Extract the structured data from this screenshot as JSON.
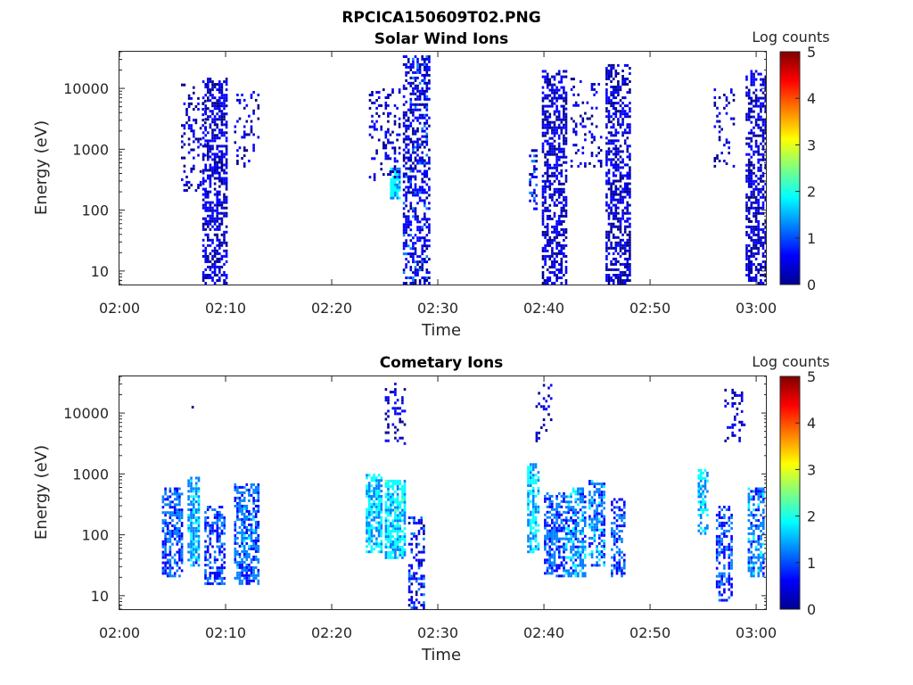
{
  "figure_title": "RPCICA150609T02.PNG",
  "colormap": [
    "#00008f",
    "#0000ff",
    "#0080ff",
    "#00ffff",
    "#80ff80",
    "#ffff00",
    "#ff8000",
    "#ff0000",
    "#800000"
  ],
  "chart_data": [
    {
      "type": "heatmap",
      "title": "Solar Wind Ions",
      "xlabel": "Time",
      "ylabel": "Energy (eV)",
      "y_scale": "log",
      "xlim": [
        "02:00",
        "03:01"
      ],
      "ylim": [
        6,
        40000
      ],
      "x_ticks": [
        "02:00",
        "02:10",
        "02:20",
        "02:30",
        "02:40",
        "02:50",
        "03:00"
      ],
      "y_ticks": [
        "10",
        "100",
        "1000",
        "10000"
      ],
      "colorbar": {
        "label": "Log counts",
        "range": [
          0,
          5
        ],
        "ticks": [
          "0",
          "1",
          "2",
          "3",
          "4",
          "5"
        ]
      },
      "clusters": [
        {
          "t": "02:09",
          "t_spread_min": 1.2,
          "e_min": 6,
          "e_max": 15000,
          "level": 0.4,
          "density": 0.55
        },
        {
          "t": "02:07",
          "t_spread_min": 1.2,
          "e_min": 200,
          "e_max": 12000,
          "level": 0.3,
          "density": 0.2
        },
        {
          "t": "02:12",
          "t_spread_min": 1.2,
          "e_min": 500,
          "e_max": 10000,
          "level": 0.3,
          "density": 0.15
        },
        {
          "t": "02:28",
          "t_spread_min": 1.3,
          "e_min": 6,
          "e_max": 35000,
          "level": 0.5,
          "density": 0.5
        },
        {
          "t": "02:26",
          "t_spread_min": 0.5,
          "e_min": 150,
          "e_max": 500,
          "level": 1.7,
          "density": 0.8
        },
        {
          "t": "02:25",
          "t_spread_min": 1.5,
          "e_min": 300,
          "e_max": 10000,
          "level": 0.3,
          "density": 0.2
        },
        {
          "t": "02:41",
          "t_spread_min": 1.2,
          "e_min": 6,
          "e_max": 20000,
          "level": 0.4,
          "density": 0.55
        },
        {
          "t": "02:39",
          "t_spread_min": 0.4,
          "e_min": 100,
          "e_max": 1000,
          "level": 0.6,
          "density": 0.3
        },
        {
          "t": "02:44",
          "t_spread_min": 1.5,
          "e_min": 500,
          "e_max": 15000,
          "level": 0.3,
          "density": 0.15
        },
        {
          "t": "02:47",
          "t_spread_min": 1.2,
          "e_min": 6,
          "e_max": 25000,
          "level": 0.4,
          "density": 0.55
        },
        {
          "t": "02:57",
          "t_spread_min": 1.0,
          "e_min": 500,
          "e_max": 10000,
          "level": 0.3,
          "density": 0.2
        },
        {
          "t": "03:00",
          "t_spread_min": 1.0,
          "e_min": 6,
          "e_max": 20000,
          "level": 0.4,
          "density": 0.55
        }
      ]
    },
    {
      "type": "heatmap",
      "title": "Cometary Ions",
      "xlabel": "Time",
      "ylabel": "Energy (eV)",
      "y_scale": "log",
      "xlim": [
        "02:00",
        "03:01"
      ],
      "ylim": [
        6,
        40000
      ],
      "x_ticks": [
        "02:00",
        "02:10",
        "02:20",
        "02:30",
        "02:40",
        "02:50",
        "03:00"
      ],
      "y_ticks": [
        "10",
        "100",
        "1000",
        "10000"
      ],
      "colorbar": {
        "label": "Log counts",
        "range": [
          0,
          5
        ],
        "ticks": [
          "0",
          "1",
          "2",
          "3",
          "4",
          "5"
        ]
      },
      "clusters": [
        {
          "t": "02:05",
          "t_spread_min": 1.0,
          "e_min": 20,
          "e_max": 600,
          "level": 1.0,
          "density": 0.6
        },
        {
          "t": "02:07",
          "t_spread_min": 0.6,
          "e_min": 30,
          "e_max": 900,
          "level": 1.4,
          "density": 0.7
        },
        {
          "t": "02:09",
          "t_spread_min": 1.0,
          "e_min": 15,
          "e_max": 300,
          "level": 0.9,
          "density": 0.55
        },
        {
          "t": "02:12",
          "t_spread_min": 1.2,
          "e_min": 15,
          "e_max": 700,
          "level": 1.1,
          "density": 0.6
        },
        {
          "t": "02:07",
          "t_spread_min": 0.2,
          "e_min": 12000,
          "e_max": 14000,
          "level": 0.3,
          "density": 0.5
        },
        {
          "t": "02:24",
          "t_spread_min": 0.8,
          "e_min": 50,
          "e_max": 1000,
          "level": 1.6,
          "density": 0.75
        },
        {
          "t": "02:26",
          "t_spread_min": 1.0,
          "e_min": 40,
          "e_max": 800,
          "level": 1.7,
          "density": 0.75
        },
        {
          "t": "02:28",
          "t_spread_min": 0.8,
          "e_min": 6,
          "e_max": 200,
          "level": 0.7,
          "density": 0.4
        },
        {
          "t": "02:26",
          "t_spread_min": 1.0,
          "e_min": 3000,
          "e_max": 35000,
          "level": 0.4,
          "density": 0.25
        },
        {
          "t": "02:39",
          "t_spread_min": 0.6,
          "e_min": 50,
          "e_max": 1500,
          "level": 1.6,
          "density": 0.65
        },
        {
          "t": "02:41",
          "t_spread_min": 1.0,
          "e_min": 20,
          "e_max": 500,
          "level": 1.0,
          "density": 0.6
        },
        {
          "t": "02:43",
          "t_spread_min": 1.0,
          "e_min": 20,
          "e_max": 600,
          "level": 1.3,
          "density": 0.6
        },
        {
          "t": "02:45",
          "t_spread_min": 0.8,
          "e_min": 30,
          "e_max": 800,
          "level": 1.2,
          "density": 0.55
        },
        {
          "t": "02:47",
          "t_spread_min": 0.7,
          "e_min": 20,
          "e_max": 400,
          "level": 1.0,
          "density": 0.5
        },
        {
          "t": "02:40",
          "t_spread_min": 0.8,
          "e_min": 3000,
          "e_max": 30000,
          "level": 0.4,
          "density": 0.2
        },
        {
          "t": "02:55",
          "t_spread_min": 0.5,
          "e_min": 100,
          "e_max": 1200,
          "level": 1.5,
          "density": 0.55
        },
        {
          "t": "02:57",
          "t_spread_min": 0.8,
          "e_min": 8,
          "e_max": 300,
          "level": 0.9,
          "density": 0.5
        },
        {
          "t": "03:00",
          "t_spread_min": 0.8,
          "e_min": 20,
          "e_max": 600,
          "level": 1.2,
          "density": 0.55
        },
        {
          "t": "02:58",
          "t_spread_min": 1.0,
          "e_min": 3000,
          "e_max": 25000,
          "level": 0.4,
          "density": 0.2
        }
      ]
    }
  ]
}
